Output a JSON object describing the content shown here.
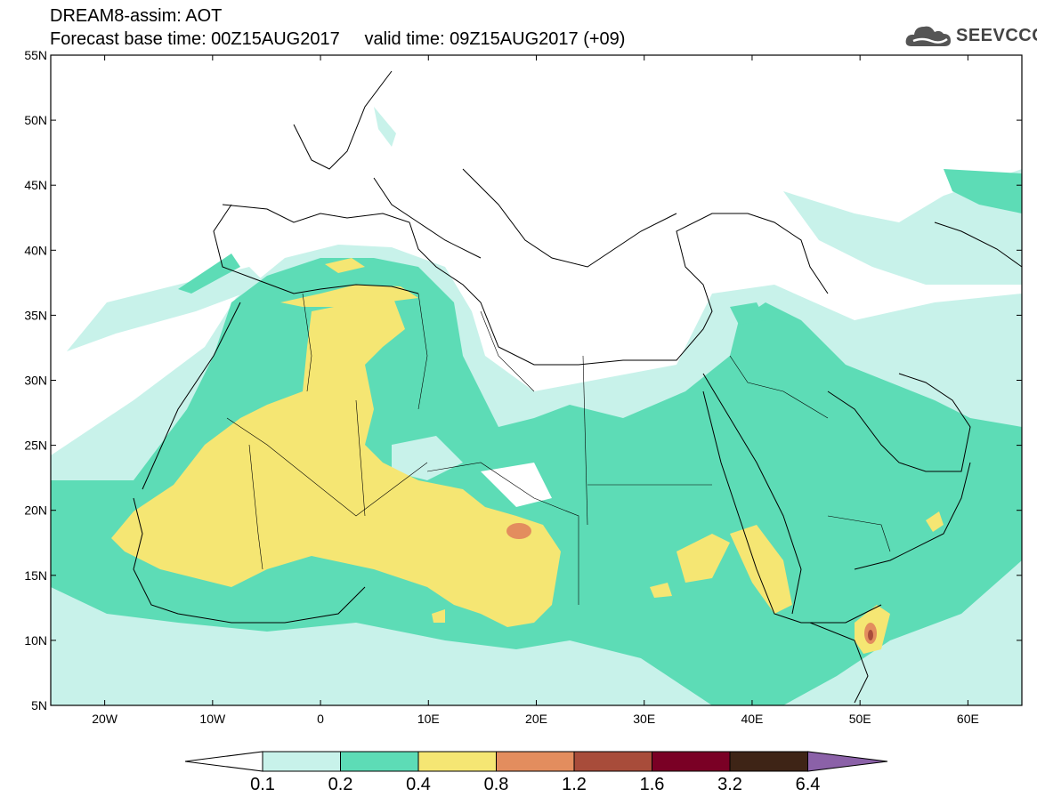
{
  "header": {
    "title_line1": "DREAM8-assim: AOT",
    "title_line2": "Forecast base time: 00Z15AUG2017     valid time: 09Z15AUG2017 (+09)",
    "logo_text": "SEEVCCC"
  },
  "map": {
    "lat_labels": [
      "55N",
      "50N",
      "45N",
      "40N",
      "35N",
      "30N",
      "25N",
      "20N",
      "15N",
      "10N",
      "5N"
    ],
    "lon_labels": [
      "20W",
      "10W",
      "0",
      "10E",
      "20E",
      "30E",
      "40E",
      "50E",
      "60E"
    ],
    "lon_range": [
      -25,
      65
    ],
    "lat_range": [
      5,
      55
    ]
  },
  "colorbar": {
    "labels": [
      "0.1",
      "0.2",
      "0.4",
      "0.8",
      "1.2",
      "1.6",
      "3.2",
      "6.4"
    ],
    "colors": [
      "#ffffff",
      "#c8f2ea",
      "#5ddcb6",
      "#f5e673",
      "#e38d5e",
      "#a84c3a",
      "#7a0025",
      "#3e2416",
      "#8b61a8"
    ]
  }
}
